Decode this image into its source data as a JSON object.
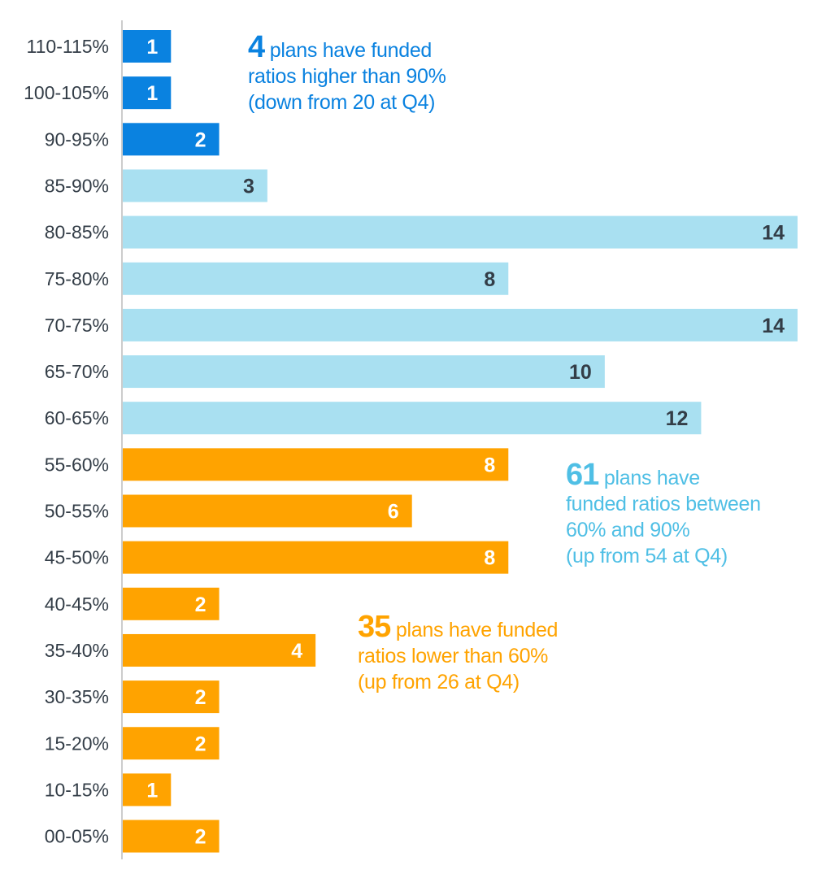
{
  "chart_data": {
    "type": "bar",
    "orientation": "horizontal",
    "categories": [
      "110-115%",
      "100-105%",
      "90-95%",
      "85-90%",
      "80-85%",
      "75-80%",
      "70-75%",
      "65-70%",
      "60-65%",
      "55-60%",
      "50-55%",
      "45-50%",
      "40-45%",
      "35-40%",
      "30-35%",
      "15-20%",
      "10-15%",
      "00-05%"
    ],
    "values": [
      1,
      1,
      2,
      3,
      14,
      8,
      14,
      10,
      12,
      8,
      6,
      8,
      2,
      4,
      2,
      2,
      1,
      2
    ],
    "groups": [
      "high",
      "high",
      "high",
      "mid",
      "mid",
      "mid",
      "mid",
      "mid",
      "mid",
      "low",
      "low",
      "low",
      "low",
      "low",
      "low",
      "low",
      "low",
      "low"
    ],
    "xlim": [
      0,
      14
    ],
    "grid": false,
    "data_labels": true,
    "title": "",
    "xlabel": "",
    "ylabel": ""
  },
  "colors": {
    "high": "#0a82e0",
    "mid": "#a9e0f1",
    "low": "#ffa300",
    "high_text": "#0a82e0",
    "mid_text": "#4fbfe5",
    "low_text": "#ffa300",
    "label_on_high": "#ffffff",
    "label_on_mid": "#333d47",
    "label_on_low": "#ffffff",
    "axis_label": "#333d47",
    "axis_line": "#cccccc"
  },
  "annotations": {
    "high": {
      "number": "4",
      "line1": " plans have funded",
      "line2": "ratios higher than 90%",
      "line3": "(down from 20 at Q4)"
    },
    "mid": {
      "number": "61",
      "line1": " plans have",
      "line2": "funded ratios between",
      "line3": "60% and 90%",
      "line4": "(up from 54 at Q4)"
    },
    "low": {
      "number": "35",
      "line1": " plans have funded",
      "line2": "ratios lower than 60%",
      "line3": "(up from 26 at Q4)"
    }
  }
}
